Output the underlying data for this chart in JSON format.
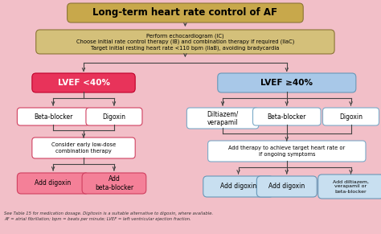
{
  "title": "Long-term heart rate control of AF",
  "background_color": "#f2bfc8",
  "title_box_color": "#c8a84b",
  "title_box_edge": "#8B7536",
  "second_box_color": "#d4c07a",
  "second_box_edge": "#8B7536",
  "second_box_text": "Perform echocardiogram (IC)\nChoose initial rate control therapy (IB) and combination therapy if required (IIaC)\nTarget initial resting heart rate <110 bpm (IIaB), avoiding bradycardia",
  "lvef_low_color": "#e8335a",
  "lvef_low_edge": "#c0002a",
  "lvef_low_text": "LVEF <40%",
  "lvef_high_color": "#a8c8e8",
  "lvef_high_edge": "#6898b8",
  "lvef_high_text": "LVEF ≥40%",
  "pink_box_color": "#f48098",
  "pink_box_edge": "#d04060",
  "blue_box_color": "#c8dff0",
  "blue_box_edge": "#6898b8",
  "white_box_color": "#ffffff",
  "white_pink_edge": "#d04060",
  "white_blue_edge": "#7aaac8",
  "arrow_color": "#444444",
  "footer_line1": "See Table 15 for medication dosage. Digitoxin is a suitable alternative to digoxin, where available.",
  "footer_line2": "AF = atrial fibrillation; bpm = beats per minute; LVEF = left ventricular ejection fraction.",
  "title_fontsize": 8.5,
  "label_fontsize": 5.5,
  "small_fontsize": 4.8
}
